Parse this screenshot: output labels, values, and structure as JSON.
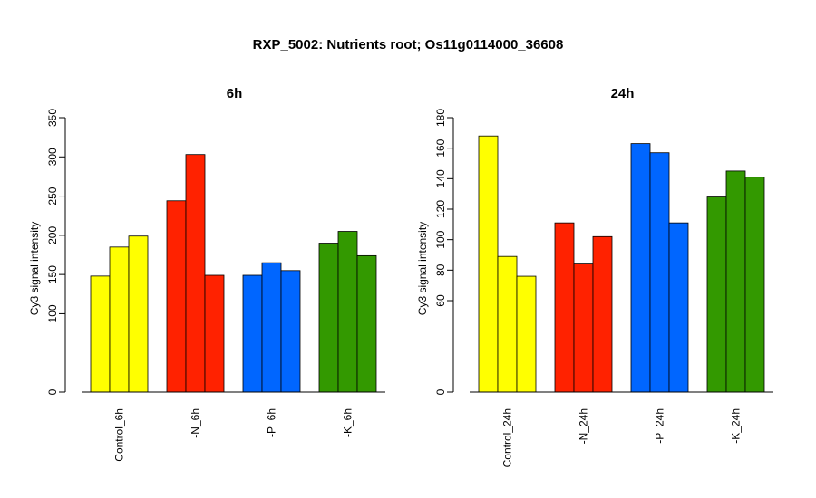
{
  "title": "RXP_5002: Nutrients root; Os11g0114000_36608",
  "chart_data": [
    {
      "type": "bar",
      "title": "6h",
      "ylabel": "Cy3 signal intensity",
      "ylim": [
        0,
        350
      ],
      "yticks": [
        0,
        100,
        150,
        200,
        250,
        300,
        350
      ],
      "categories": [
        "Control_6h",
        "-N_6h",
        "-P_6h",
        "-K_6h"
      ],
      "colors": [
        "#FFFF00",
        "#FF2200",
        "#0066FF",
        "#339900"
      ],
      "values": [
        [
          148,
          185,
          199
        ],
        [
          244,
          303,
          149
        ],
        [
          149,
          165,
          155
        ],
        [
          190,
          205,
          174
        ]
      ]
    },
    {
      "type": "bar",
      "title": "24h",
      "ylabel": "Cy3 signal intensity",
      "ylim": [
        0,
        180
      ],
      "yticks": [
        0,
        60,
        80,
        100,
        120,
        140,
        160,
        180
      ],
      "categories": [
        "Control_24h",
        "-N_24h",
        "-P_24h",
        "-K_24h"
      ],
      "colors": [
        "#FFFF00",
        "#FF2200",
        "#0066FF",
        "#339900"
      ],
      "values": [
        [
          168,
          89,
          76
        ],
        [
          111,
          84,
          102
        ],
        [
          163,
          157,
          111
        ],
        [
          128,
          145,
          141
        ]
      ]
    }
  ]
}
